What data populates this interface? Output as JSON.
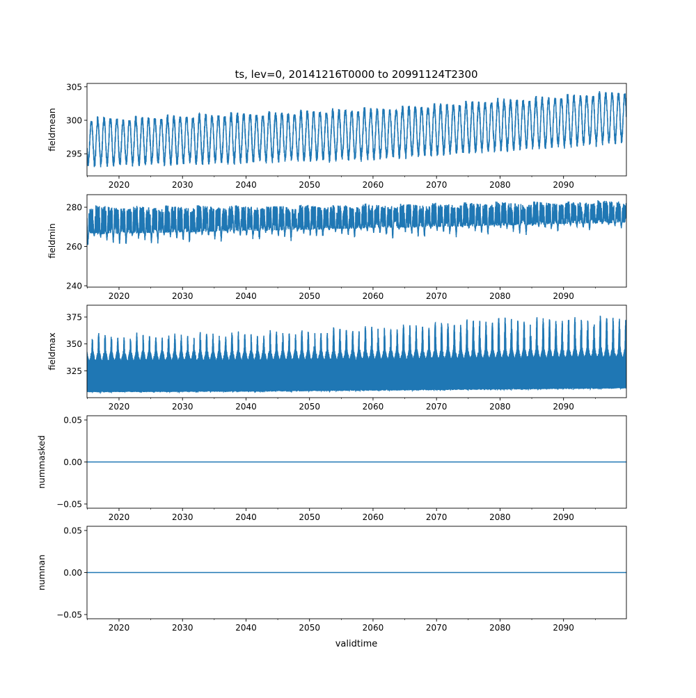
{
  "chart_data": {
    "type": "line",
    "title": "ts, lev=0, 20141216T0000 to 20991124T2300",
    "xlabel": "validtime",
    "xlim": [
      2014.96,
      2099.9
    ],
    "x_ticks": [
      2020,
      2030,
      2040,
      2050,
      2060,
      2070,
      2080,
      2090
    ],
    "x_tick_labels": [
      "2020",
      "2030",
      "2040",
      "2050",
      "2060",
      "2070",
      "2080",
      "2090"
    ],
    "x_minor_step_years": 5,
    "series_color": "#1f77b4",
    "panels": [
      {
        "ylabel": "fieldmean",
        "ylim": [
          291.7,
          305.5
        ],
        "y_ticks": [
          295,
          300,
          305
        ],
        "y_tick_labels": [
          "295",
          "300",
          "305"
        ],
        "seasonal_envelope": {
          "x": [
            2015,
            2040,
            2060,
            2080,
            2100
          ],
          "low": [
            292.8,
            293.3,
            293.8,
            295.0,
            296.3
          ],
          "high": [
            300.5,
            301.3,
            302.0,
            303.3,
            304.6
          ]
        },
        "noise": 0.8
      },
      {
        "ylabel": "fieldmin",
        "ylim": [
          239.3,
          286.4
        ],
        "y_ticks": [
          240,
          260,
          280
        ],
        "y_tick_labels": [
          "240",
          "260",
          "280"
        ],
        "seasonal_envelope": {
          "x": [
            2015,
            2040,
            2060,
            2080,
            2100
          ],
          "low": [
            250,
            254,
            256,
            258,
            262
          ],
          "high": [
            281,
            281.5,
            282,
            283,
            284
          ]
        },
        "noise": 3
      },
      {
        "ylabel": "fieldmax",
        "ylim": [
          300,
          386
        ],
        "y_ticks": [
          325,
          350,
          375
        ],
        "y_tick_labels": [
          "325",
          "350",
          "375"
        ],
        "seasonal_envelope": {
          "x": [
            2015,
            2040,
            2060,
            2080,
            2100
          ],
          "low": [
            305,
            305.5,
            306.5,
            307.5,
            308.5
          ],
          "high": [
            361,
            363,
            368,
            376,
            378
          ]
        },
        "noise": 12
      },
      {
        "ylabel": "nummasked",
        "ylim": [
          -0.055,
          0.055
        ],
        "y_ticks": [
          -0.05,
          0,
          0.05
        ],
        "y_tick_labels": [
          "−0.05",
          "0.00",
          "0.05"
        ],
        "constant_value": 0
      },
      {
        "ylabel": "numnan",
        "ylim": [
          -0.055,
          0.055
        ],
        "y_ticks": [
          -0.05,
          0,
          0.05
        ],
        "y_tick_labels": [
          "−0.05",
          "0.00",
          "0.05"
        ],
        "constant_value": 0
      }
    ]
  }
}
